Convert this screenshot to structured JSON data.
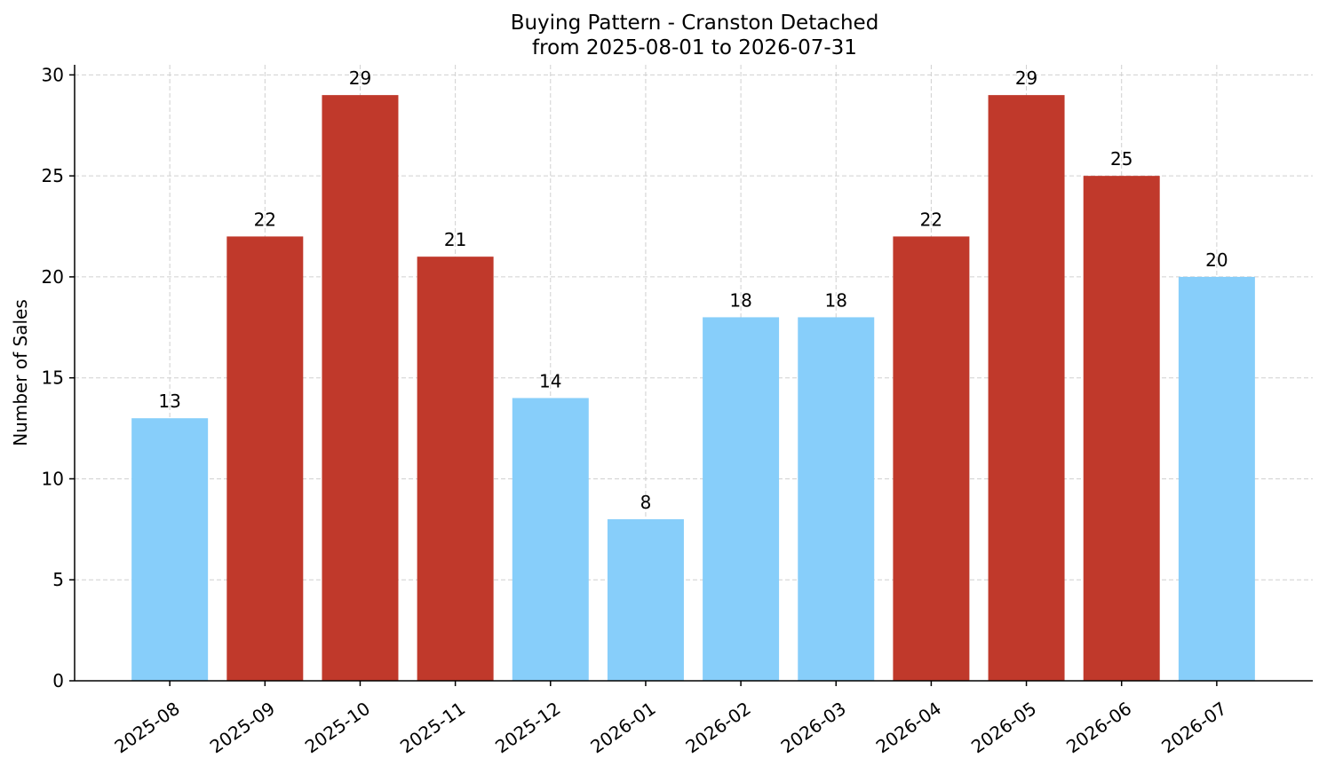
{
  "chart_data": {
    "type": "bar",
    "title": "Buying Pattern - Cranston Detached",
    "subtitle": "from 2025-08-01 to 2026-07-31",
    "y_label": "Number of Sales",
    "categories": [
      "2025-08",
      "2025-09",
      "2025-10",
      "2025-11",
      "2025-12",
      "2026-01",
      "2026-02",
      "2026-03",
      "2026-04",
      "2026-05",
      "2026-06",
      "2026-07"
    ],
    "values": [
      13,
      22,
      29,
      21,
      14,
      8,
      18,
      18,
      22,
      29,
      25,
      20
    ],
    "colors": [
      "#87cefa",
      "#c0392b",
      "#c0392b",
      "#c0392b",
      "#87cefa",
      "#87cefa",
      "#87cefa",
      "#87cefa",
      "#c0392b",
      "#c0392b",
      "#c0392b",
      "#87cefa"
    ],
    "ylim": [
      0,
      30.5
    ],
    "yticks": [
      0,
      5,
      10,
      15,
      20,
      25,
      30
    ],
    "grid": true
  }
}
